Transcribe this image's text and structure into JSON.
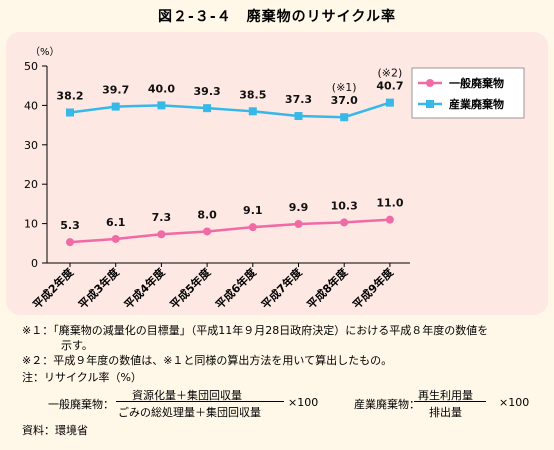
{
  "title": "図２-３-４　廃棄物のリサイクル率",
  "chart_data": {
    "type": "line",
    "title": "図２-３-４　廃棄物のリサイクル率",
    "ylabel": "（%）",
    "ylim": [
      0,
      50
    ],
    "yticks": [
      0,
      10,
      20,
      30,
      40,
      50
    ],
    "grid": false,
    "legend_position": "top-right",
    "categories": [
      "平成2年度",
      "平成3年度",
      "平成4年度",
      "平成5年度",
      "平成6年度",
      "平成7年度",
      "平成8年度",
      "平成9年度"
    ],
    "series": [
      {
        "name": "一般廃棄物",
        "color": "#f06aa6",
        "marker": "circle",
        "values": [
          5.3,
          6.1,
          7.3,
          8.0,
          9.1,
          9.9,
          10.3,
          11.0
        ],
        "labels": [
          "5.3",
          "6.1",
          "7.3",
          "8.0",
          "9.1",
          "9.9",
          "10.3",
          "11.0"
        ]
      },
      {
        "name": "産業廃棄物",
        "color": "#36b8e8",
        "marker": "square",
        "values": [
          38.2,
          39.7,
          40.0,
          39.3,
          38.5,
          37.3,
          37.0,
          40.7
        ],
        "labels": [
          "38.2",
          "39.7",
          "40.0",
          "39.3",
          "38.5",
          "37.3",
          "37.0",
          "40.7"
        ]
      }
    ],
    "annotations": [
      {
        "category_index": 6,
        "text": "(※1)"
      },
      {
        "category_index": 7,
        "text": "(※2)"
      }
    ]
  },
  "notes": {
    "note1_line1": "※１：「廃棄物の減量化の目標量」（平成11年９月28日政府決定）における平成８年度の数値を",
    "note1_line2": "示す。",
    "note2": "※２：平成９年度の数値は、※１と同様の算出方法を用いて算出したもの。",
    "note3": "注：リサイクル率（%）",
    "formula_general_label": "一般廃棄物：",
    "formula_general_numerator": "資源化量＋集団回収量",
    "formula_general_denominator": "ごみの総処理量＋集団回収量",
    "formula_general_multiplier": "×100",
    "formula_industrial_label": "産業廃棄物：",
    "formula_industrial_numerator": "再生利用量",
    "formula_industrial_denominator": "排出量",
    "formula_industrial_multiplier": "×100",
    "source": "資料：環境省"
  }
}
